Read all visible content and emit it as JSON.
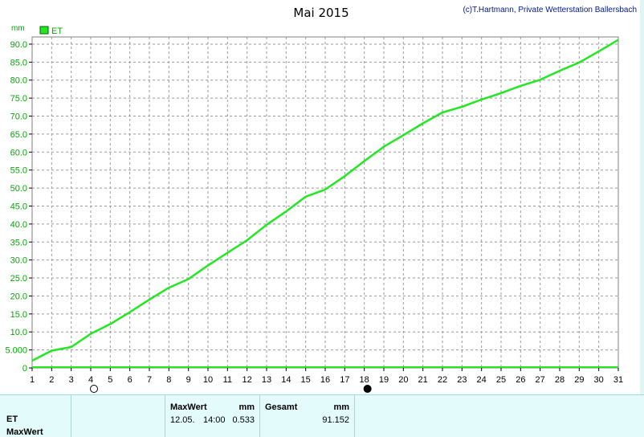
{
  "header": {
    "copyright": "(c)T.Hartmann, Private Wetterstation Ballersbach"
  },
  "chart_data": {
    "type": "line",
    "title": "Mai 2015",
    "ylabel": "mm",
    "xlabel": "",
    "xlim": [
      1,
      31
    ],
    "ylim": [
      0,
      92
    ],
    "grid": true,
    "legend_placement": "top-left",
    "y_ticks": [
      {
        "v": 0,
        "label": "0"
      },
      {
        "v": 5,
        "label": "5.000"
      },
      {
        "v": 10,
        "label": "10.0"
      },
      {
        "v": 15,
        "label": "15.0"
      },
      {
        "v": 20,
        "label": "20.0"
      },
      {
        "v": 25,
        "label": "25.0"
      },
      {
        "v": 30,
        "label": "30.0"
      },
      {
        "v": 35,
        "label": "35.0"
      },
      {
        "v": 40,
        "label": "40.0"
      },
      {
        "v": 45,
        "label": "45.0"
      },
      {
        "v": 50,
        "label": "50.0"
      },
      {
        "v": 55,
        "label": "55.0"
      },
      {
        "v": 60,
        "label": "60.0"
      },
      {
        "v": 65,
        "label": "65.0"
      },
      {
        "v": 70,
        "label": "70.0"
      },
      {
        "v": 75,
        "label": "75.0"
      },
      {
        "v": 80,
        "label": "80.0"
      },
      {
        "v": 85,
        "label": "85.0"
      },
      {
        "v": 90,
        "label": "90.0"
      }
    ],
    "x_ticks": [
      "1",
      "2",
      "3",
      "4",
      "5",
      "6",
      "7",
      "8",
      "9",
      "10",
      "11",
      "12",
      "13",
      "14",
      "15",
      "16",
      "17",
      "18",
      "19",
      "20",
      "21",
      "22",
      "23",
      "24",
      "25",
      "26",
      "27",
      "28",
      "29",
      "30",
      "31"
    ],
    "series": [
      {
        "name": "ET",
        "color": "#22e822",
        "x": [
          1,
          2,
          3,
          4,
          5,
          6,
          7,
          8,
          9,
          10,
          11,
          12,
          13,
          14,
          15,
          16,
          17,
          18,
          19,
          20,
          21,
          22,
          23,
          24,
          25,
          26,
          27,
          28,
          29,
          30,
          31
        ],
        "values": [
          2.0,
          4.8,
          5.8,
          9.5,
          12.2,
          15.5,
          19.0,
          22.3,
          24.7,
          28.5,
          32.0,
          35.5,
          39.8,
          43.5,
          47.6,
          49.6,
          53.3,
          57.5,
          61.5,
          64.7,
          68.0,
          71.0,
          72.6,
          74.6,
          76.4,
          78.4,
          80.1,
          82.6,
          84.9,
          88.0,
          91.2
        ]
      }
    ],
    "moon_phases": [
      {
        "day": 4,
        "phase": "full-moon-icon"
      },
      {
        "day": 18,
        "phase": "new-moon-icon"
      }
    ]
  },
  "footer": {
    "row_label": "ET",
    "row_label2": "MaxWert",
    "max_header": "MaxWert",
    "max_unit": "mm",
    "max_date": "12.05.",
    "max_time": "14:00",
    "max_value": "0.533",
    "total_header": "Gesamt",
    "total_unit": "mm",
    "total_value": "91.152"
  }
}
